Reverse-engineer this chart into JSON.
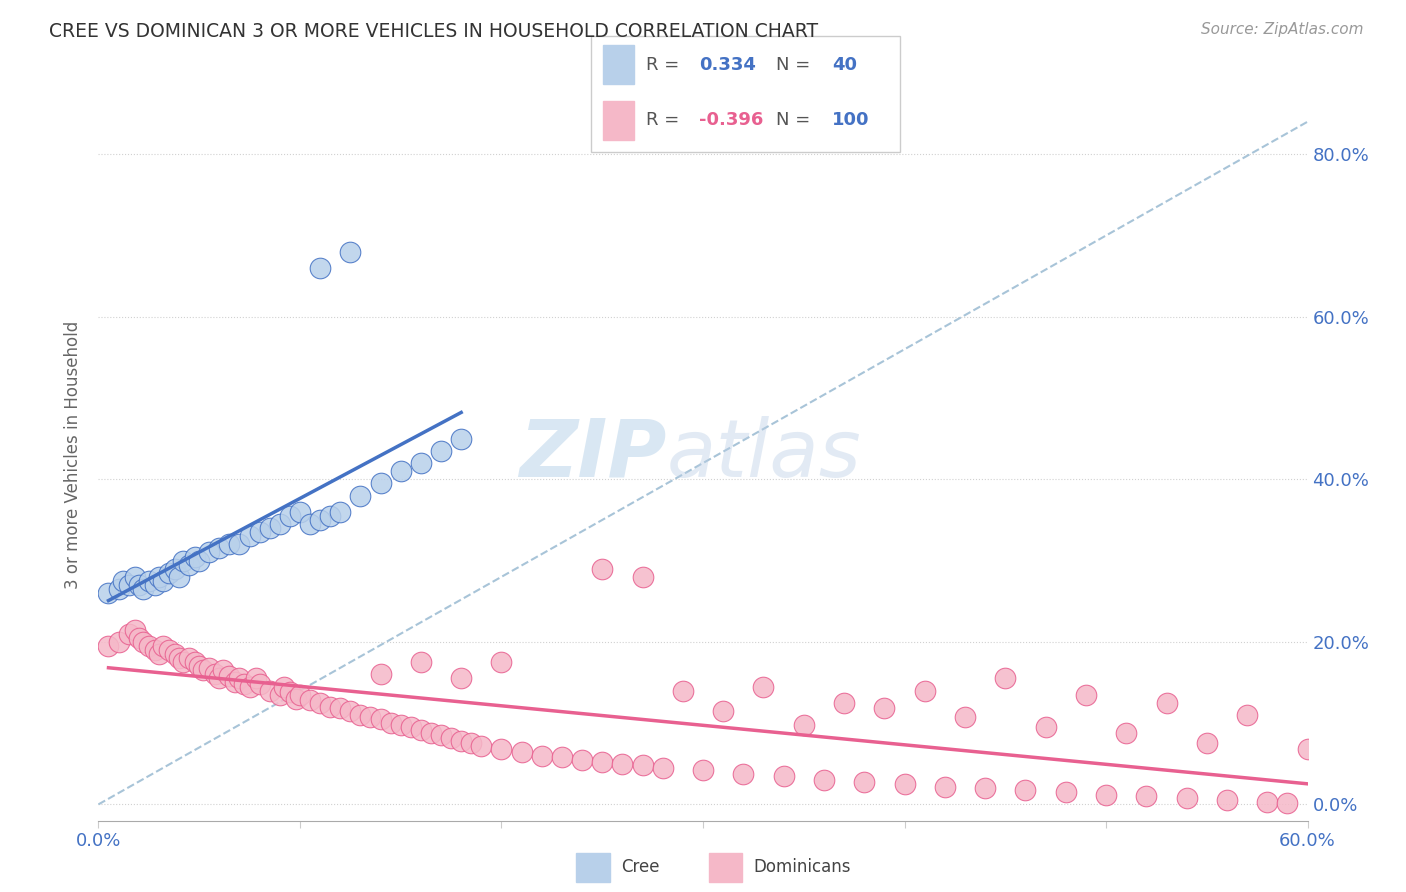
{
  "title": "CREE VS DOMINICAN 3 OR MORE VEHICLES IN HOUSEHOLD CORRELATION CHART",
  "source_text": "Source: ZipAtlas.com",
  "ylabel": "3 or more Vehicles in Household",
  "xlim": [
    0.0,
    0.6
  ],
  "ylim": [
    -0.02,
    0.88
  ],
  "legend_r_cree": "0.334",
  "legend_n_cree": "40",
  "legend_r_dom": "-0.396",
  "legend_n_dom": "100",
  "cree_color": "#b8d0ea",
  "dom_color": "#f5b8c8",
  "cree_line_color": "#4472c4",
  "dom_line_color": "#e86090",
  "ref_line_color": "#a8c4d8",
  "background_color": "#ffffff",
  "watermark_color": "#dce8f4",
  "cree_x": [
    0.005,
    0.01,
    0.012,
    0.015,
    0.018,
    0.02,
    0.022,
    0.025,
    0.028,
    0.03,
    0.032,
    0.035,
    0.038,
    0.04,
    0.042,
    0.045,
    0.048,
    0.05,
    0.055,
    0.06,
    0.065,
    0.07,
    0.075,
    0.08,
    0.085,
    0.09,
    0.095,
    0.1,
    0.105,
    0.11,
    0.115,
    0.12,
    0.13,
    0.14,
    0.15,
    0.16,
    0.17,
    0.18,
    0.11,
    0.125
  ],
  "cree_y": [
    0.26,
    0.265,
    0.275,
    0.27,
    0.28,
    0.27,
    0.265,
    0.275,
    0.27,
    0.28,
    0.275,
    0.285,
    0.29,
    0.28,
    0.3,
    0.295,
    0.305,
    0.3,
    0.31,
    0.315,
    0.32,
    0.32,
    0.33,
    0.335,
    0.34,
    0.345,
    0.355,
    0.36,
    0.345,
    0.35,
    0.355,
    0.36,
    0.38,
    0.395,
    0.41,
    0.42,
    0.435,
    0.45,
    0.66,
    0.68
  ],
  "dom_x": [
    0.005,
    0.01,
    0.015,
    0.018,
    0.02,
    0.022,
    0.025,
    0.028,
    0.03,
    0.032,
    0.035,
    0.038,
    0.04,
    0.042,
    0.045,
    0.048,
    0.05,
    0.052,
    0.055,
    0.058,
    0.06,
    0.062,
    0.065,
    0.068,
    0.07,
    0.072,
    0.075,
    0.078,
    0.08,
    0.085,
    0.09,
    0.092,
    0.095,
    0.098,
    0.1,
    0.105,
    0.11,
    0.115,
    0.12,
    0.125,
    0.13,
    0.135,
    0.14,
    0.145,
    0.15,
    0.155,
    0.16,
    0.165,
    0.17,
    0.175,
    0.18,
    0.185,
    0.19,
    0.2,
    0.21,
    0.22,
    0.23,
    0.24,
    0.25,
    0.26,
    0.27,
    0.28,
    0.3,
    0.32,
    0.34,
    0.36,
    0.38,
    0.4,
    0.42,
    0.44,
    0.46,
    0.48,
    0.5,
    0.52,
    0.54,
    0.56,
    0.58,
    0.59,
    0.31,
    0.35,
    0.39,
    0.43,
    0.47,
    0.51,
    0.55,
    0.29,
    0.33,
    0.37,
    0.41,
    0.45,
    0.49,
    0.53,
    0.57,
    0.25,
    0.27,
    0.6,
    0.14,
    0.16,
    0.18,
    0.2
  ],
  "dom_y": [
    0.195,
    0.2,
    0.21,
    0.215,
    0.205,
    0.2,
    0.195,
    0.19,
    0.185,
    0.195,
    0.19,
    0.185,
    0.18,
    0.175,
    0.18,
    0.175,
    0.17,
    0.165,
    0.168,
    0.16,
    0.155,
    0.165,
    0.158,
    0.15,
    0.155,
    0.148,
    0.145,
    0.155,
    0.148,
    0.14,
    0.135,
    0.145,
    0.138,
    0.13,
    0.135,
    0.128,
    0.125,
    0.12,
    0.118,
    0.115,
    0.11,
    0.108,
    0.105,
    0.1,
    0.098,
    0.095,
    0.092,
    0.088,
    0.085,
    0.082,
    0.078,
    0.075,
    0.072,
    0.068,
    0.065,
    0.06,
    0.058,
    0.055,
    0.052,
    0.05,
    0.048,
    0.045,
    0.042,
    0.038,
    0.035,
    0.03,
    0.028,
    0.025,
    0.022,
    0.02,
    0.018,
    0.015,
    0.012,
    0.01,
    0.008,
    0.005,
    0.003,
    0.002,
    0.115,
    0.098,
    0.118,
    0.108,
    0.095,
    0.088,
    0.075,
    0.14,
    0.145,
    0.125,
    0.14,
    0.155,
    0.135,
    0.125,
    0.11,
    0.29,
    0.28,
    0.068,
    0.16,
    0.175,
    0.155,
    0.175
  ]
}
